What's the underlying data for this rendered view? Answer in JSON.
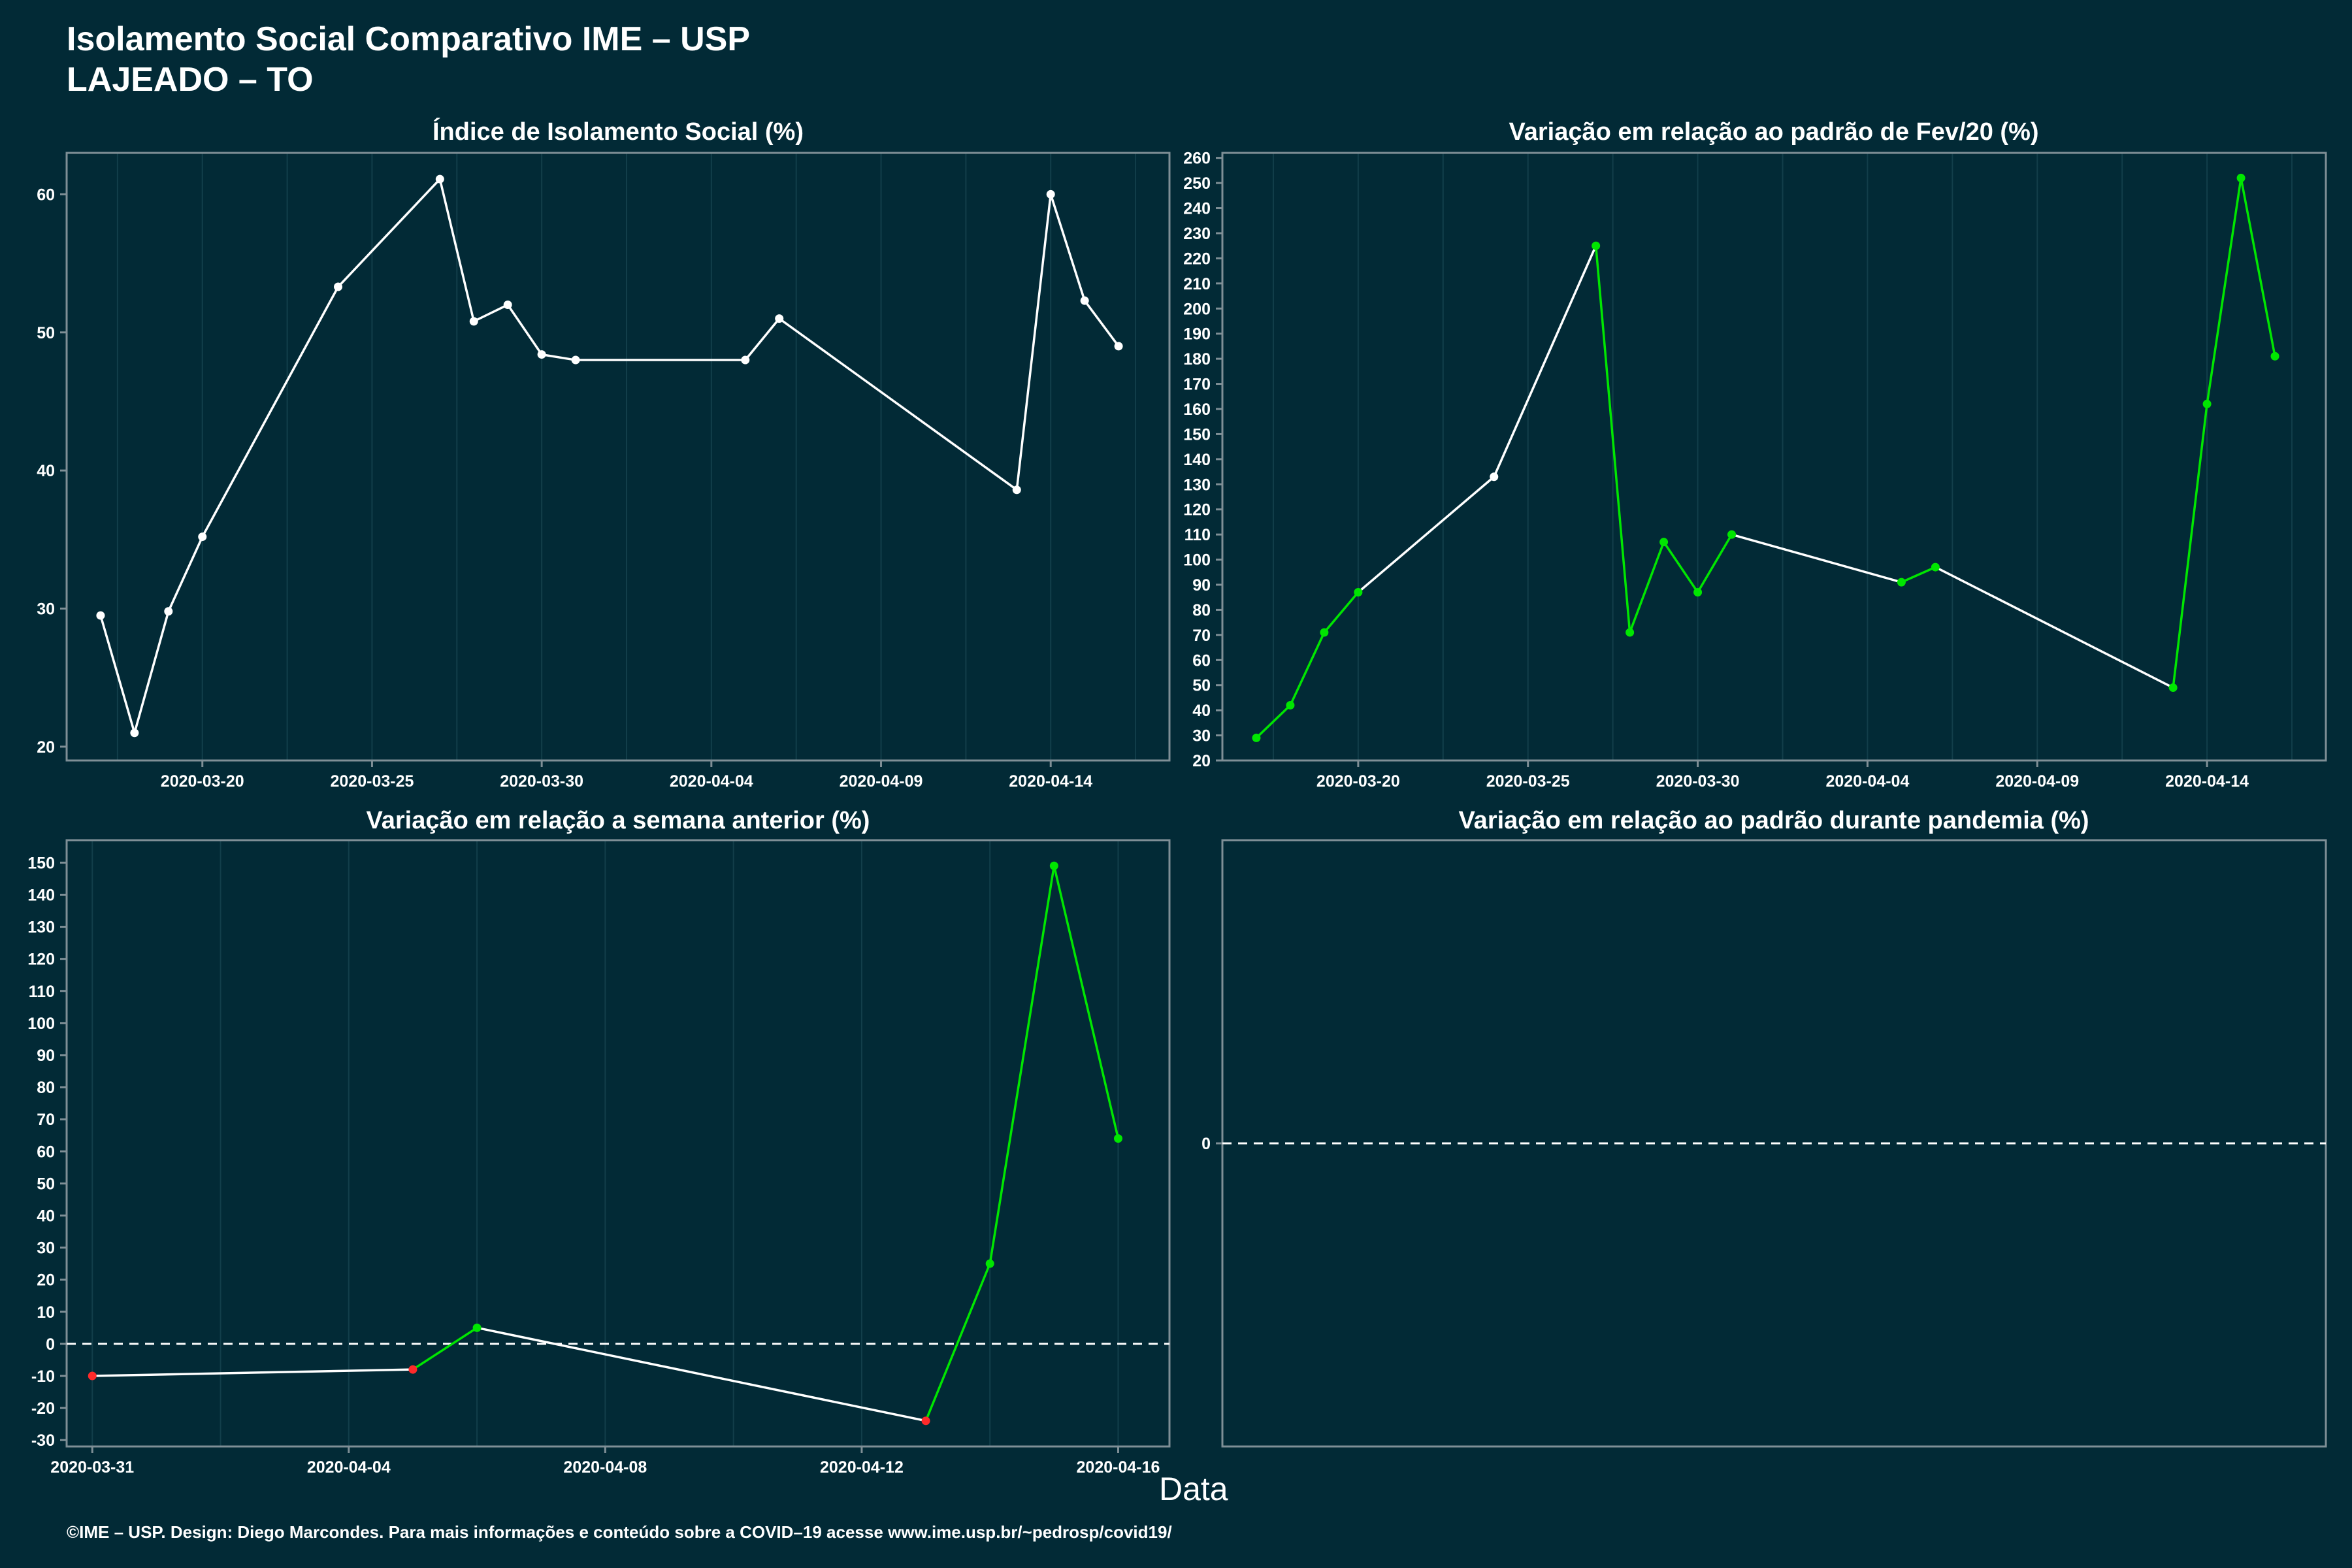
{
  "header": {
    "title": "Isolamento Social Comparativo IME – USP",
    "subtitle": "LAJEADO – TO"
  },
  "xlabel": "Data",
  "footer": "©IME – USP. Design: Diego Marcondes. Para mais informações e conteúdo sobre a COVID–19 acesse www.ime.usp.br/~pedrosp/covid19/",
  "colors": {
    "background": "#022a36",
    "line_default": "#ffffff",
    "increase": "#00e600",
    "decrease": "#ff2a2a",
    "grid": "#123e4a",
    "frame": "#7f8f96"
  },
  "chart_data": [
    {
      "type": "line",
      "title": "Índice de Isolamento Social (%)",
      "xlabel": "",
      "ylabel": "",
      "ylim": [
        19,
        63
      ],
      "yticks": [
        20,
        30,
        40,
        50,
        60
      ],
      "xticks": [
        "2020-03-20",
        "2020-03-25",
        "2020-03-30",
        "2020-04-04",
        "2020-04-09",
        "2020-04-14"
      ],
      "grid": true,
      "series": [
        {
          "x": [
            "2020-03-17",
            "2020-03-18",
            "2020-03-19",
            "2020-03-20",
            "2020-03-24",
            "2020-03-27",
            "2020-03-28",
            "2020-03-29",
            "2020-03-30",
            "2020-03-31",
            "2020-04-05",
            "2020-04-06",
            "2020-04-13",
            "2020-04-14",
            "2020-04-15",
            "2020-04-16"
          ],
          "values": [
            29.5,
            21.0,
            29.8,
            35.2,
            53.3,
            61.1,
            50.8,
            52.0,
            48.4,
            48.0,
            48.0,
            51.0,
            38.6,
            60.0,
            52.3,
            49.0
          ],
          "colors": [
            "default",
            "default",
            "default",
            "default",
            "default",
            "default",
            "default",
            "default",
            "default",
            "default",
            "default",
            "default",
            "default",
            "default",
            "default",
            "default"
          ]
        }
      ]
    },
    {
      "type": "line",
      "title": "Variação em relação ao padrão de Fev/20 (%)",
      "xlabel": "",
      "ylabel": "",
      "ylim": [
        20,
        262
      ],
      "yticks": [
        20,
        30,
        40,
        50,
        60,
        70,
        80,
        90,
        100,
        110,
        120,
        130,
        140,
        150,
        160,
        170,
        180,
        190,
        200,
        210,
        220,
        230,
        240,
        250,
        260
      ],
      "xticks": [
        "2020-03-20",
        "2020-03-25",
        "2020-03-30",
        "2020-04-04",
        "2020-04-09",
        "2020-04-14"
      ],
      "grid": true,
      "series": [
        {
          "x": [
            "2020-03-17",
            "2020-03-18",
            "2020-03-19",
            "2020-03-20",
            "2020-03-24",
            "2020-03-27",
            "2020-03-28",
            "2020-03-29",
            "2020-03-30",
            "2020-03-31",
            "2020-04-05",
            "2020-04-06",
            "2020-04-13",
            "2020-04-14",
            "2020-04-15",
            "2020-04-16"
          ],
          "values": [
            29,
            42,
            71,
            87,
            133,
            225,
            71,
            107,
            87,
            110,
            91,
            97,
            49,
            162,
            252,
            181
          ],
          "colors": [
            "increase",
            "increase",
            "increase",
            "increase",
            "default",
            "increase",
            "increase",
            "increase",
            "increase",
            "increase",
            "increase",
            "increase",
            "increase",
            "increase",
            "increase",
            "increase"
          ],
          "segment_colors": [
            "increase",
            "increase",
            "increase",
            "default",
            "default",
            "increase",
            "increase",
            "increase",
            "increase",
            "default",
            "increase",
            "default",
            "increase",
            "increase",
            "increase"
          ]
        }
      ]
    },
    {
      "type": "line",
      "title": "Variação em relação a semana anterior (%)",
      "xlabel": "",
      "ylabel": "",
      "ylim": [
        -32,
        157
      ],
      "yticks": [
        -30,
        -20,
        -10,
        0,
        10,
        20,
        30,
        40,
        50,
        60,
        70,
        80,
        90,
        100,
        110,
        120,
        130,
        140,
        150
      ],
      "xticks": [
        "2020-03-31",
        "2020-04-04",
        "2020-04-08",
        "2020-04-12",
        "2020-04-16"
      ],
      "grid": true,
      "reference_line": 0,
      "series": [
        {
          "x": [
            "2020-03-31",
            "2020-04-05",
            "2020-04-06",
            "2020-04-13",
            "2020-04-14",
            "2020-04-15",
            "2020-04-16"
          ],
          "values": [
            -10,
            -8,
            5,
            -24,
            25,
            149,
            64
          ],
          "colors": [
            "decrease",
            "decrease",
            "increase",
            "decrease",
            "increase",
            "increase",
            "increase"
          ],
          "segment_colors": [
            "default",
            "increase",
            "default",
            "increase",
            "increase",
            "increase"
          ]
        }
      ]
    },
    {
      "type": "line",
      "title": "Variação em relação ao padrão durante pandemia (%)",
      "xlabel": "",
      "ylabel": "",
      "yticks": [
        0
      ],
      "xticks": [],
      "grid": false,
      "reference_line": 0,
      "series": []
    }
  ]
}
